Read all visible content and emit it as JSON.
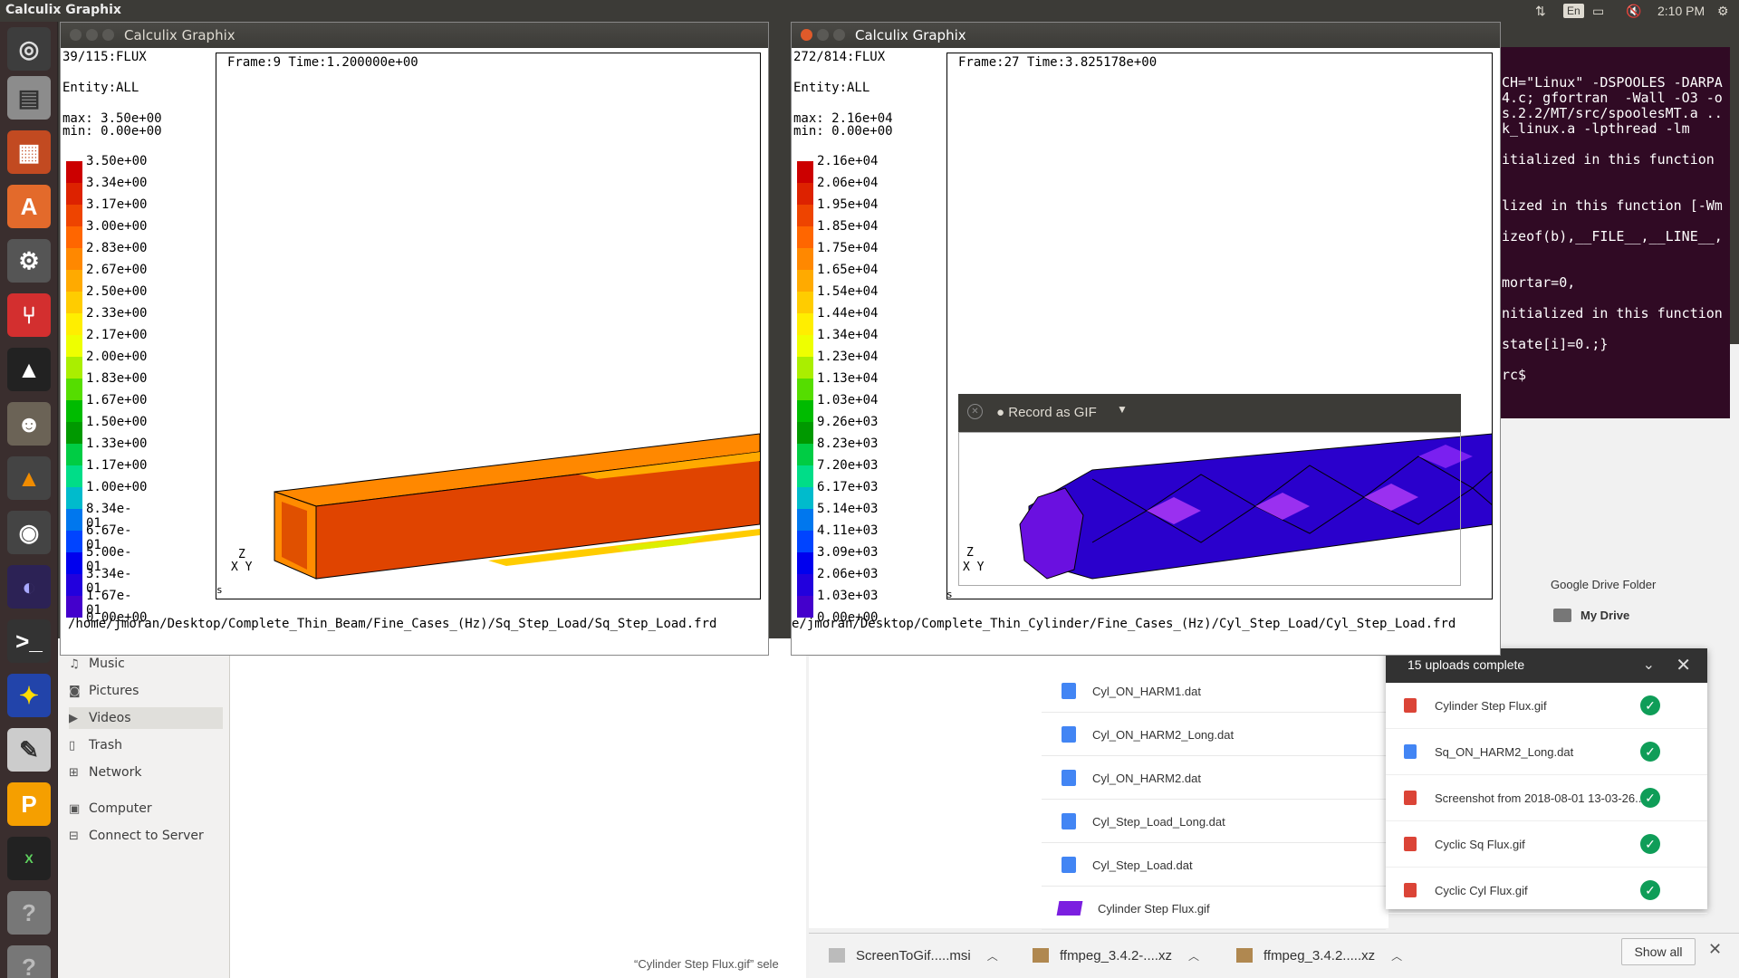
{
  "topbar": {
    "app_title": "Calculix Graphix",
    "lang": "En",
    "time": "2:10 PM"
  },
  "launcher": {
    "items": [
      "ubuntu-dash",
      "files",
      "libreoffice-impress",
      "software-center",
      "system-settings",
      "git-gui",
      "inkscape",
      "gimp",
      "vlc",
      "chrome",
      "eclipse",
      "terminal",
      "starred",
      "text-editor",
      "pycharm",
      "xterm",
      "help",
      "help"
    ]
  },
  "file_manager": {
    "places": [
      {
        "label": "Music",
        "icon": "music-icon"
      },
      {
        "label": "Pictures",
        "icon": "camera-icon"
      },
      {
        "label": "Videos",
        "icon": "video-icon"
      },
      {
        "label": "Trash",
        "icon": "trash-icon"
      },
      {
        "label": "Network",
        "icon": "network-icon"
      },
      {
        "label": "Computer",
        "icon": "computer-icon"
      },
      {
        "label": "Connect to Server",
        "icon": "server-icon"
      }
    ],
    "status": "“Cylinder Step Flux.gif” sele"
  },
  "drive": {
    "folder_label": "Google Drive Folder",
    "my_drive": "My Drive",
    "files": [
      "Cyl_ON_HARM1.dat",
      "Cyl_ON_HARM2_Long.dat",
      "Cyl_ON_HARM2.dat",
      "Cyl_Step_Load_Long.dat",
      "Cyl_Step_Load.dat",
      "Cylinder Step Flux.gif"
    ],
    "uploads_title": "15 uploads complete",
    "uploads": [
      {
        "name": "Cylinder Step Flux.gif",
        "type": "img"
      },
      {
        "name": "Sq_ON_HARM2_Long.dat",
        "type": "doc"
      },
      {
        "name": "Screenshot from 2018-08-01 13-03-26...",
        "type": "img"
      },
      {
        "name": "Cyclic Sq Flux.gif",
        "type": "img"
      },
      {
        "name": "Cyclic Cyl Flux.gif",
        "type": "img"
      }
    ]
  },
  "downloads": {
    "items": [
      "ScreenToGif.....msi",
      "ffmpeg_3.4.2-....xz",
      "ffmpeg_3.4.2.....xz"
    ],
    "show_all": "Show all"
  },
  "terminal": {
    "lines": [
      "CH=\"Linux\" -DSPOOLES -DARPA",
      "4.c; gfortran  -Wall -O3 -o",
      "s.2.2/MT/src/spoolesMT.a ..",
      "k_linux.a -lpthread -lm",
      "",
      "itialized in this function",
      "",
      "",
      "lized in this function [-Wm",
      "",
      "izeof(b),__FILE__,__LINE__,",
      "",
      "",
      "mortar=0,",
      "",
      "nitialized in this function",
      "",
      "state[i]=0.;}",
      "",
      "rc$ "
    ]
  },
  "cgx_left": {
    "title": "Calculix Graphix",
    "dataset": "39/115:FLUX",
    "entity": "Entity:ALL",
    "max": "max: 3.50e+00",
    "min": "min: 0.00e+00",
    "frame": "Frame:9 Time:1.200000e+00",
    "legend": [
      "3.50e+00",
      "3.34e+00",
      "3.17e+00",
      "3.00e+00",
      "2.83e+00",
      "2.67e+00",
      "2.50e+00",
      "2.33e+00",
      "2.17e+00",
      "2.00e+00",
      "1.83e+00",
      "1.67e+00",
      "1.50e+00",
      "1.33e+00",
      "1.17e+00",
      "1.00e+00",
      "8.34e-01",
      "6.67e-01",
      "5.00e-01",
      "3.34e-01",
      "1.67e-01",
      "0.00e+00"
    ],
    "axis_z": "Z",
    "axis_xy": "X Y",
    "s_mark": "s",
    "path": "/home/jmoran/Desktop/Complete_Thin_Beam/Fine_Cases_(Hz)/Sq_Step_Load/Sq_Step_Load.frd"
  },
  "cgx_right": {
    "title": "Calculix Graphix",
    "dataset": "272/814:FLUX",
    "entity": "Entity:ALL",
    "max": "max: 2.16e+04",
    "min": "min: 0.00e+00",
    "frame": "Frame:27 Time:3.825178e+00",
    "legend": [
      "2.16e+04",
      "2.06e+04",
      "1.95e+04",
      "1.85e+04",
      "1.75e+04",
      "1.65e+04",
      "1.54e+04",
      "1.44e+04",
      "1.34e+04",
      "1.23e+04",
      "1.13e+04",
      "1.03e+04",
      "9.26e+03",
      "8.23e+03",
      "7.20e+03",
      "6.17e+03",
      "5.14e+03",
      "4.11e+03",
      "3.09e+03",
      "2.06e+03",
      "1.03e+03",
      "0.00e+00"
    ],
    "axis_z": "Z",
    "axis_xy": "X Y",
    "s_mark": "s",
    "path": "e/jmoran/Desktop/Complete_Thin_Cylinder/Fine_Cases_(Hz)/Cyl_Step_Load/Cyl_Step_Load.frd"
  },
  "gif_recorder": {
    "label": "Record as GIF"
  },
  "colors": {
    "legend": [
      "#cc0000",
      "#dd2200",
      "#ee4400",
      "#ff6600",
      "#ff8800",
      "#ffaa00",
      "#ffcc00",
      "#ffee00",
      "#eeff00",
      "#aaee00",
      "#55dd00",
      "#00bb00",
      "#009900",
      "#00cc44",
      "#00dd88",
      "#00bbcc",
      "#0077ee",
      "#0044ff",
      "#0000ee",
      "#2200dd",
      "#4400cc",
      "#7700ee"
    ]
  }
}
